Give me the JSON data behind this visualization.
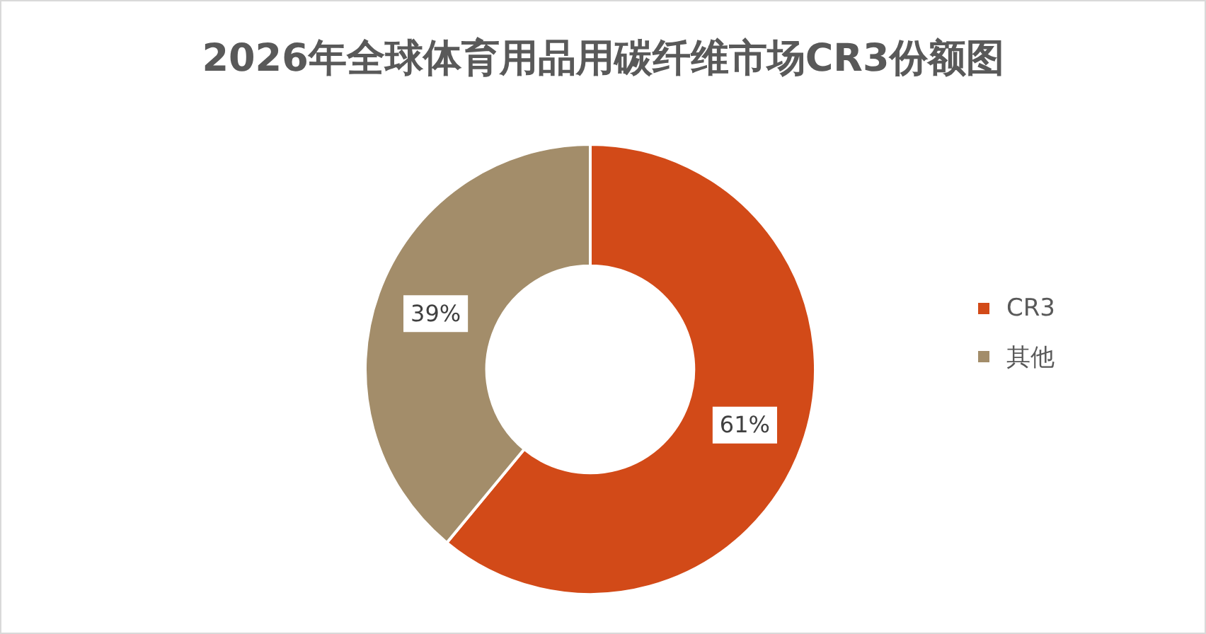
{
  "chart_data": {
    "type": "donut",
    "title": "2026年全球体育用品用碳纤维市场CR3份额图",
    "categories": [
      "CR3",
      "其他"
    ],
    "values": [
      61,
      39
    ],
    "colors": [
      "#d24a18",
      "#a38d6a"
    ],
    "value_labels": [
      "61%",
      "39%"
    ],
    "legend": "right"
  }
}
